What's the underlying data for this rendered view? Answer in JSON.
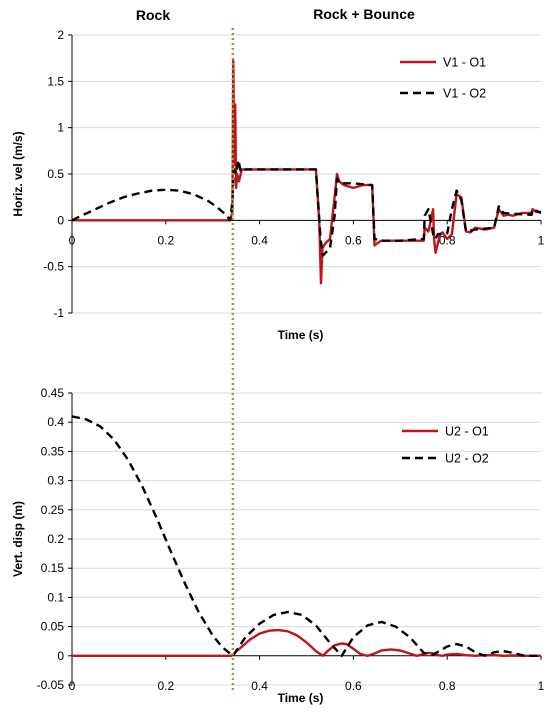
{
  "headers": {
    "left": "Rock",
    "right": "Rock + Bounce"
  },
  "colors": {
    "red": "#c0141c",
    "black": "#000000",
    "divider": "#7dab3a",
    "grid": "#d9d9d9"
  },
  "chart_data": [
    {
      "type": "line",
      "xlabel": "Time (s)",
      "ylabel": "Horiz. vel (m/s)",
      "xlim": [
        0,
        1
      ],
      "ylim": [
        -1,
        2
      ],
      "xticks": [
        0,
        0.2,
        0.4,
        0.6,
        0.8,
        1
      ],
      "yticks": [
        -1,
        -0.5,
        0,
        0.5,
        1,
        1.5,
        2
      ],
      "xtick_labels": [
        "0",
        "0.2",
        "0.4",
        "0.6",
        "0.8",
        "1"
      ],
      "ytick_labels": [
        "-1",
        "-0.5",
        "0",
        "0.5",
        "1",
        "1.5",
        "2"
      ],
      "divider_x": 0.343,
      "grid": "horizontal",
      "legend_position": "top-right",
      "series": [
        {
          "name": "V1 - O1",
          "color": "#c0141c",
          "dash": "solid",
          "x": [
            0,
            0.33,
            0.338,
            0.342,
            0.344,
            0.346,
            0.348,
            0.35,
            0.352,
            0.356,
            0.362,
            0.37,
            0.4,
            0.52,
            0.527,
            0.531,
            0.534,
            0.54,
            0.55,
            0.56,
            0.565,
            0.57,
            0.58,
            0.6,
            0.62,
            0.64,
            0.645,
            0.65,
            0.66,
            0.7,
            0.73,
            0.75,
            0.752,
            0.76,
            0.77,
            0.772,
            0.775,
            0.78,
            0.785,
            0.79,
            0.8,
            0.81,
            0.82,
            0.83,
            0.84,
            0.85,
            0.86,
            0.88,
            0.9,
            0.91,
            0.92,
            0.93,
            0.94,
            0.96,
            0.98,
            0.982,
            0.99,
            1.0
          ],
          "y": [
            0,
            0,
            0,
            0.1,
            1.72,
            0.6,
            1.25,
            0.35,
            0.5,
            0.42,
            0.55,
            0.55,
            0.55,
            0.55,
            0.0,
            -0.68,
            -0.3,
            -0.25,
            -0.2,
            0.25,
            0.5,
            0.42,
            0.38,
            0.35,
            0.38,
            0.38,
            -0.27,
            -0.25,
            -0.22,
            -0.22,
            -0.22,
            -0.22,
            -0.08,
            -0.12,
            0.12,
            -0.2,
            -0.35,
            -0.25,
            -0.15,
            -0.13,
            -0.2,
            -0.15,
            0.28,
            0.25,
            -0.12,
            -0.13,
            -0.08,
            -0.1,
            -0.08,
            0.12,
            0.05,
            0.06,
            0.05,
            0.08,
            0.08,
            0.12,
            0.09,
            0.09
          ]
        },
        {
          "name": "V1 - O2",
          "color": "#000000",
          "dash": "dashed",
          "x": [
            0,
            0.02,
            0.05,
            0.08,
            0.11,
            0.14,
            0.17,
            0.2,
            0.23,
            0.26,
            0.29,
            0.31,
            0.33,
            0.337,
            0.342,
            0.345,
            0.35,
            0.355,
            0.36,
            0.37,
            0.4,
            0.52,
            0.53,
            0.535,
            0.55,
            0.56,
            0.565,
            0.57,
            0.6,
            0.64,
            0.645,
            0.66,
            0.7,
            0.75,
            0.752,
            0.76,
            0.77,
            0.775,
            0.78,
            0.8,
            0.81,
            0.82,
            0.83,
            0.84,
            0.86,
            0.9,
            0.91,
            0.92,
            0.94,
            0.98,
            0.982,
            1.0
          ],
          "y": [
            0,
            0.05,
            0.12,
            0.19,
            0.25,
            0.29,
            0.32,
            0.33,
            0.32,
            0.28,
            0.21,
            0.14,
            0.05,
            0.0,
            0.2,
            0.55,
            0.5,
            0.65,
            0.52,
            0.55,
            0.55,
            0.55,
            -0.2,
            -0.38,
            -0.3,
            0.05,
            0.45,
            0.4,
            0.4,
            0.38,
            -0.2,
            -0.22,
            -0.22,
            -0.2,
            0.05,
            0.12,
            -0.15,
            -0.2,
            -0.15,
            -0.14,
            0.12,
            0.32,
            0.22,
            -0.12,
            -0.1,
            -0.08,
            0.15,
            0.08,
            0.07,
            0.06,
            0.12,
            0.08
          ]
        }
      ]
    },
    {
      "type": "line",
      "xlabel": "Time (s)",
      "ylabel": "Vert. disp (m)",
      "xlim": [
        0,
        1
      ],
      "ylim": [
        -0.05,
        0.45
      ],
      "xticks": [
        0,
        0.2,
        0.4,
        0.6,
        0.8,
        1
      ],
      "yticks": [
        -0.05,
        0,
        0.05,
        0.1,
        0.15,
        0.2,
        0.25,
        0.3,
        0.35,
        0.4,
        0.45
      ],
      "xtick_labels": [
        "0",
        "0.2",
        "0.4",
        "0.6",
        "0.8",
        "1"
      ],
      "ytick_labels": [
        "-0.05",
        "0",
        "0.05",
        "0.1",
        "0.15",
        "0.2",
        "0.25",
        "0.3",
        "0.35",
        "0.4",
        "0.45"
      ],
      "divider_x": 0.343,
      "grid": "horizontal",
      "legend_position": "top-right",
      "series": [
        {
          "name": "U2 - O1",
          "color": "#c0141c",
          "dash": "solid",
          "x": [
            0,
            0.34,
            0.36,
            0.38,
            0.4,
            0.42,
            0.44,
            0.46,
            0.48,
            0.5,
            0.52,
            0.535,
            0.545,
            0.56,
            0.575,
            0.585,
            0.6,
            0.615,
            0.63,
            0.645,
            0.66,
            0.68,
            0.7,
            0.72,
            0.735,
            0.75,
            0.76,
            0.77,
            0.78,
            0.79,
            0.8,
            0.82,
            0.84,
            0.86,
            0.88,
            0.9,
            0.92,
            0.94,
            0.96,
            1.0
          ],
          "y": [
            0,
            0,
            0.014,
            0.028,
            0.038,
            0.043,
            0.044,
            0.042,
            0.035,
            0.023,
            0.008,
            0,
            0.008,
            0.018,
            0.021,
            0.02,
            0.012,
            0.003,
            0,
            0.004,
            0.009,
            0.011,
            0.009,
            0.004,
            0,
            0.003,
            0.005,
            0.004,
            0.001,
            0,
            0.002,
            0.003,
            0.001,
            0,
            0.001,
            0.001,
            0,
            0.0005,
            0,
            0
          ]
        },
        {
          "name": "U2 - O2",
          "color": "#000000",
          "dash": "dashed",
          "x": [
            0,
            0.03,
            0.06,
            0.09,
            0.12,
            0.15,
            0.18,
            0.21,
            0.24,
            0.27,
            0.3,
            0.32,
            0.343,
            0.37,
            0.4,
            0.43,
            0.46,
            0.49,
            0.52,
            0.55,
            0.575,
            0.6,
            0.63,
            0.66,
            0.69,
            0.72,
            0.75,
            0.77,
            0.8,
            0.82,
            0.84,
            0.86,
            0.88,
            0.9,
            0.92,
            0.94,
            0.96,
            0.98,
            1.0
          ],
          "y": [
            0.41,
            0.405,
            0.393,
            0.37,
            0.335,
            0.29,
            0.237,
            0.18,
            0.125,
            0.075,
            0.035,
            0.015,
            0,
            0.032,
            0.055,
            0.07,
            0.075,
            0.07,
            0.052,
            0.022,
            0,
            0.032,
            0.052,
            0.058,
            0.05,
            0.032,
            0.005,
            0.002,
            0.016,
            0.02,
            0.016,
            0.006,
            0,
            0.006,
            0.008,
            0.005,
            0.001,
            0,
            0
          ]
        }
      ]
    }
  ]
}
